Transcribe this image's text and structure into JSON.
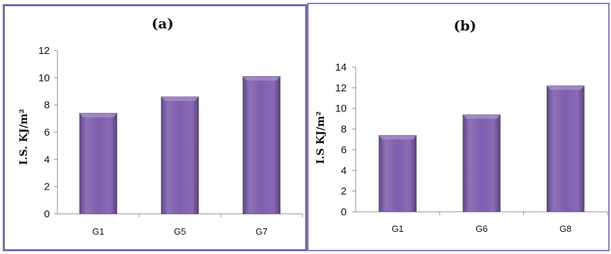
{
  "chart_data": [
    {
      "type": "bar",
      "title": "(a)",
      "ylabel": "I.S.  KJ/m²",
      "categories": [
        "G1",
        "G5",
        "G7"
      ],
      "values": [
        7.4,
        8.6,
        10.1
      ],
      "ylim": [
        0,
        12
      ],
      "yticks": [
        0,
        2,
        4,
        6,
        8,
        10,
        12
      ],
      "bar_color": "#7f5eae",
      "grid": false,
      "legend": false
    },
    {
      "type": "bar",
      "title": "(b)",
      "ylabel": "I.S KJ/m²",
      "categories": [
        "G1",
        "G6",
        "G8"
      ],
      "values": [
        7.4,
        9.4,
        12.2
      ],
      "ylim": [
        0,
        14
      ],
      "yticks": [
        0,
        2,
        4,
        6,
        8,
        10,
        12,
        14
      ],
      "bar_color": "#7f5eae",
      "grid": false,
      "legend": false
    }
  ]
}
